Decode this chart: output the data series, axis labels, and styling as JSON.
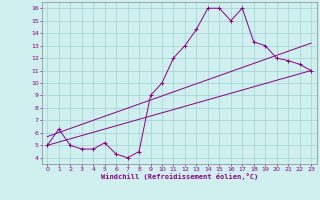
{
  "title": "",
  "xlabel": "Windchill (Refroidissement éolien,°C)",
  "background_color": "#cff0ee",
  "line_color": "#880088",
  "xlim": [
    -0.5,
    23.5
  ],
  "ylim": [
    3.5,
    16.5
  ],
  "xticks": [
    0,
    1,
    2,
    3,
    4,
    5,
    6,
    7,
    8,
    9,
    10,
    11,
    12,
    13,
    14,
    15,
    16,
    17,
    18,
    19,
    20,
    21,
    22,
    23
  ],
  "yticks": [
    4,
    5,
    6,
    7,
    8,
    9,
    10,
    11,
    12,
    13,
    14,
    15,
    16
  ],
  "line1_x": [
    0,
    1,
    2,
    3,
    4,
    5,
    6,
    7,
    8,
    9,
    10,
    11,
    12,
    13,
    14,
    15,
    16,
    17,
    18,
    19,
    20,
    21,
    22,
    23
  ],
  "line1_y": [
    5.0,
    6.3,
    5.0,
    4.7,
    4.7,
    5.2,
    4.3,
    4.0,
    4.5,
    9.0,
    10.0,
    12.0,
    13.0,
    14.3,
    16.0,
    16.0,
    15.0,
    16.0,
    13.3,
    13.0,
    12.0,
    11.8,
    11.5,
    11.0
  ],
  "line2_x": [
    0,
    23
  ],
  "line2_y": [
    5.0,
    11.0
  ],
  "line3_x": [
    0,
    23
  ],
  "line3_y": [
    5.7,
    13.2
  ]
}
